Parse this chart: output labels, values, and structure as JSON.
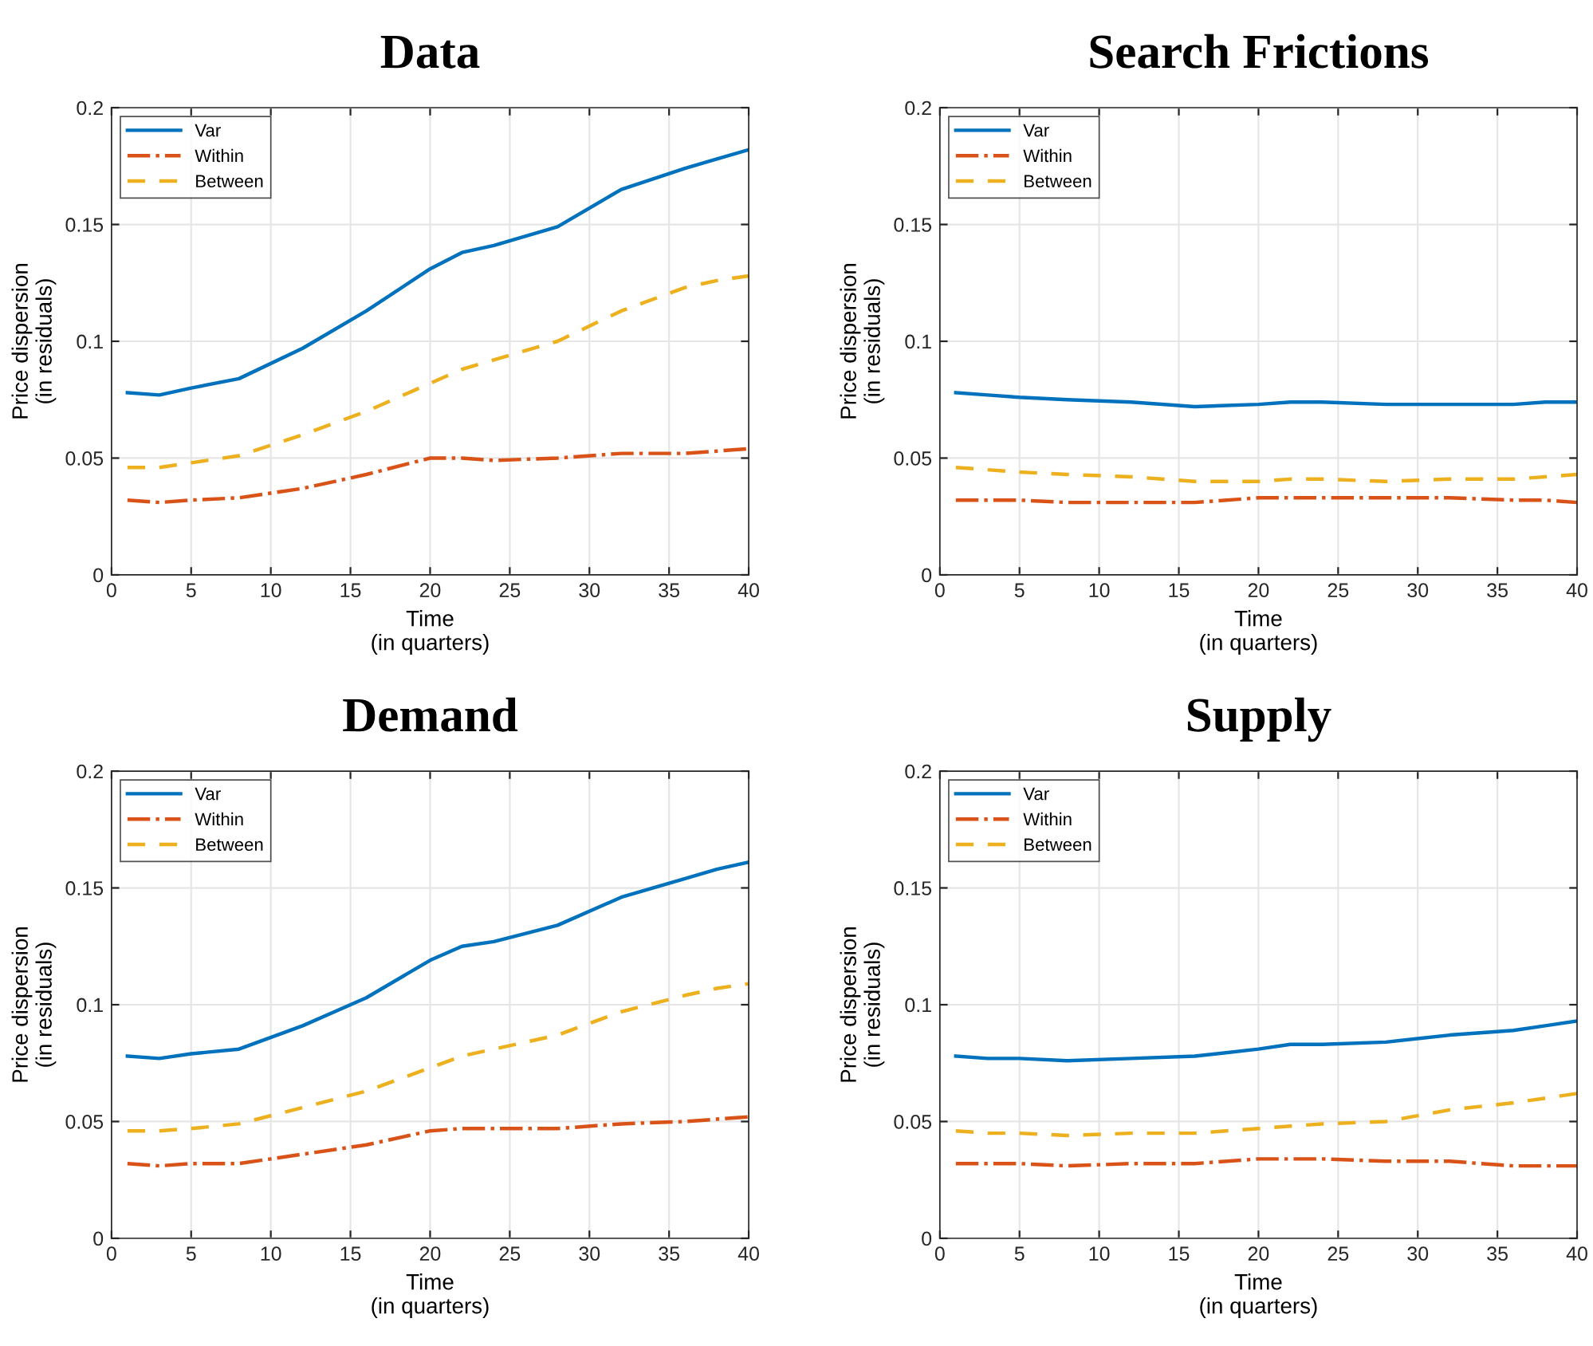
{
  "chart_data": [
    {
      "type": "line",
      "title": "Data",
      "xlabel": "Time\n(in quarters)",
      "ylabel": "Price dispersion\n(in residuals)",
      "xlim": [
        0,
        40
      ],
      "xticks": [
        0,
        5,
        10,
        15,
        20,
        25,
        30,
        35,
        40
      ],
      "ylim": [
        0,
        0.2
      ],
      "yticks": [
        0,
        0.05,
        0.1,
        0.15,
        0.2
      ],
      "grid": true,
      "legend": "top left",
      "x": [
        1,
        3,
        5,
        8,
        12,
        16,
        20,
        22,
        24,
        28,
        32,
        36,
        38,
        40
      ],
      "series": [
        {
          "name": "Var",
          "color": "#0072bd",
          "line_style": "solid",
          "values": [
            0.078,
            0.077,
            0.08,
            0.084,
            0.097,
            0.113,
            0.131,
            0.138,
            0.141,
            0.149,
            0.165,
            0.174,
            0.178,
            0.182
          ]
        },
        {
          "name": "Within",
          "color": "#d95319",
          "line_style": "dashdot",
          "values": [
            0.032,
            0.031,
            0.032,
            0.033,
            0.037,
            0.043,
            0.05,
            0.05,
            0.049,
            0.05,
            0.052,
            0.052,
            0.053,
            0.054
          ]
        },
        {
          "name": "Between",
          "color": "#edb120",
          "line_style": "dashed",
          "values": [
            0.046,
            0.046,
            0.048,
            0.051,
            0.06,
            0.07,
            0.082,
            0.088,
            0.092,
            0.1,
            0.113,
            0.123,
            0.126,
            0.128
          ]
        }
      ]
    },
    {
      "type": "line",
      "title": "Search Frictions",
      "xlabel": "Time\n(in quarters)",
      "ylabel": "Price dispersion\n(in residuals)",
      "xlim": [
        0,
        40
      ],
      "xticks": [
        0,
        5,
        10,
        15,
        20,
        25,
        30,
        35,
        40
      ],
      "ylim": [
        0,
        0.2
      ],
      "yticks": [
        0,
        0.05,
        0.1,
        0.15,
        0.2
      ],
      "grid": true,
      "legend": "top left",
      "x": [
        1,
        3,
        5,
        8,
        12,
        16,
        20,
        22,
        24,
        28,
        32,
        36,
        38,
        40
      ],
      "series": [
        {
          "name": "Var",
          "color": "#0072bd",
          "line_style": "solid",
          "values": [
            0.078,
            0.077,
            0.076,
            0.075,
            0.074,
            0.072,
            0.073,
            0.074,
            0.074,
            0.073,
            0.073,
            0.073,
            0.074,
            0.074
          ]
        },
        {
          "name": "Within",
          "color": "#d95319",
          "line_style": "dashdot",
          "values": [
            0.032,
            0.032,
            0.032,
            0.031,
            0.031,
            0.031,
            0.033,
            0.033,
            0.033,
            0.033,
            0.033,
            0.032,
            0.032,
            0.031
          ]
        },
        {
          "name": "Between",
          "color": "#edb120",
          "line_style": "dashed",
          "values": [
            0.046,
            0.045,
            0.044,
            0.043,
            0.042,
            0.04,
            0.04,
            0.041,
            0.041,
            0.04,
            0.041,
            0.041,
            0.042,
            0.043
          ]
        }
      ]
    },
    {
      "type": "line",
      "title": "Demand",
      "xlabel": "Time\n(in quarters)",
      "ylabel": "Price dispersion\n(in residuals)",
      "xlim": [
        0,
        40
      ],
      "xticks": [
        0,
        5,
        10,
        15,
        20,
        25,
        30,
        35,
        40
      ],
      "ylim": [
        0,
        0.2
      ],
      "yticks": [
        0,
        0.05,
        0.1,
        0.15,
        0.2
      ],
      "grid": true,
      "legend": "top left",
      "x": [
        1,
        3,
        5,
        8,
        12,
        16,
        20,
        22,
        24,
        28,
        32,
        36,
        38,
        40
      ],
      "series": [
        {
          "name": "Var",
          "color": "#0072bd",
          "line_style": "solid",
          "values": [
            0.078,
            0.077,
            0.079,
            0.081,
            0.091,
            0.103,
            0.119,
            0.125,
            0.127,
            0.134,
            0.146,
            0.154,
            0.158,
            0.161
          ]
        },
        {
          "name": "Within",
          "color": "#d95319",
          "line_style": "dashdot",
          "values": [
            0.032,
            0.031,
            0.032,
            0.032,
            0.036,
            0.04,
            0.046,
            0.047,
            0.047,
            0.047,
            0.049,
            0.05,
            0.051,
            0.052
          ]
        },
        {
          "name": "Between",
          "color": "#edb120",
          "line_style": "dashed",
          "values": [
            0.046,
            0.046,
            0.047,
            0.049,
            0.056,
            0.063,
            0.073,
            0.078,
            0.081,
            0.087,
            0.097,
            0.104,
            0.107,
            0.109
          ]
        }
      ]
    },
    {
      "type": "line",
      "title": "Supply",
      "xlabel": "Time\n(in quarters)",
      "ylabel": "Price dispersion\n(in residuals)",
      "xlim": [
        0,
        40
      ],
      "xticks": [
        0,
        5,
        10,
        15,
        20,
        25,
        30,
        35,
        40
      ],
      "ylim": [
        0,
        0.2
      ],
      "yticks": [
        0,
        0.05,
        0.1,
        0.15,
        0.2
      ],
      "grid": true,
      "legend": "top left",
      "x": [
        1,
        3,
        5,
        8,
        12,
        16,
        20,
        22,
        24,
        28,
        32,
        36,
        38,
        40
      ],
      "series": [
        {
          "name": "Var",
          "color": "#0072bd",
          "line_style": "solid",
          "values": [
            0.078,
            0.077,
            0.077,
            0.076,
            0.077,
            0.078,
            0.081,
            0.083,
            0.083,
            0.084,
            0.087,
            0.089,
            0.091,
            0.093
          ]
        },
        {
          "name": "Within",
          "color": "#d95319",
          "line_style": "dashdot",
          "values": [
            0.032,
            0.032,
            0.032,
            0.031,
            0.032,
            0.032,
            0.034,
            0.034,
            0.034,
            0.033,
            0.033,
            0.031,
            0.031,
            0.031
          ]
        },
        {
          "name": "Between",
          "color": "#edb120",
          "line_style": "dashed",
          "values": [
            0.046,
            0.045,
            0.045,
            0.044,
            0.045,
            0.045,
            0.047,
            0.048,
            0.049,
            0.05,
            0.055,
            0.058,
            0.06,
            0.062
          ]
        }
      ]
    }
  ]
}
